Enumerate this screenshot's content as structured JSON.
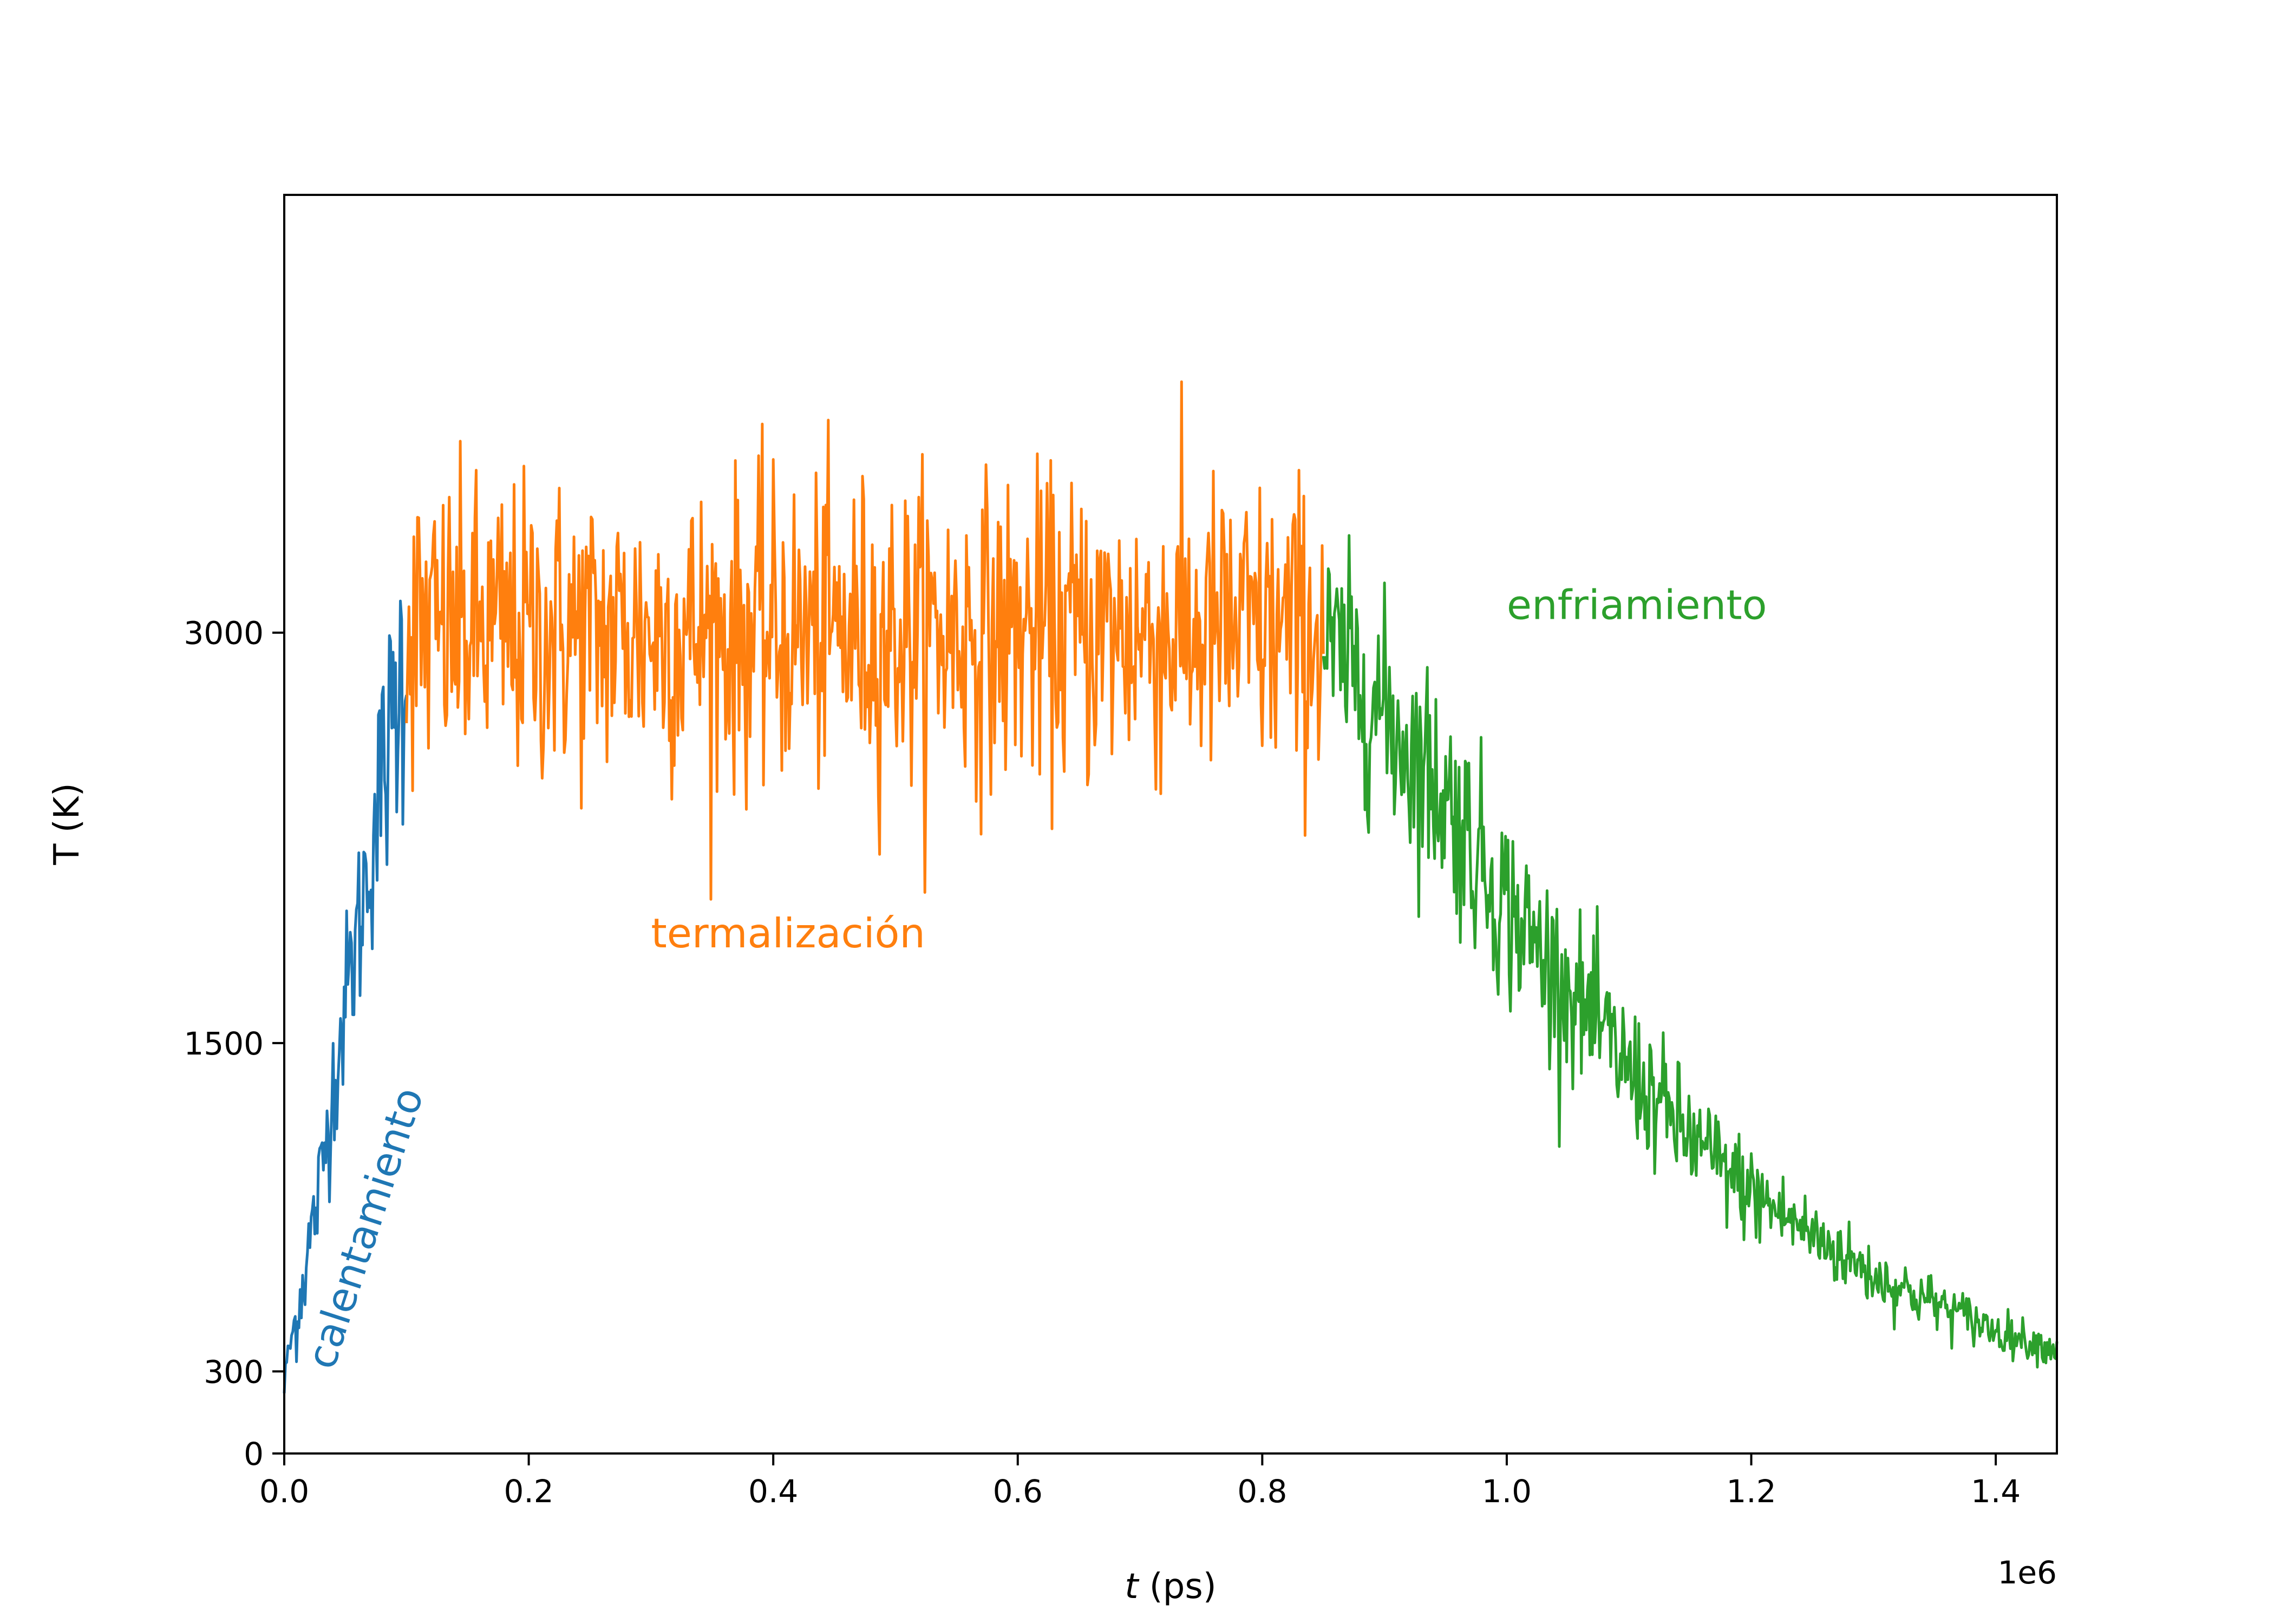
{
  "chart_data": {
    "type": "line",
    "xlabel_var": "t",
    "xlabel_unit": " (ps)",
    "ylabel": "T (K)",
    "x_offset_text": "1e6",
    "xlim": [
      0,
      1450000
    ],
    "ylim": [
      0,
      4600
    ],
    "x_ticks": [
      0,
      200000,
      400000,
      600000,
      800000,
      1000000,
      1200000,
      1400000
    ],
    "x_tick_labels": [
      "0.0",
      "0.2",
      "0.4",
      "0.6",
      "0.8",
      "1.0",
      "1.2",
      "1.4"
    ],
    "y_ticks": [
      0,
      300,
      1500,
      3000
    ],
    "y_tick_labels": [
      "0",
      "300",
      "1500",
      "3000"
    ],
    "grid": false,
    "legend": "none",
    "series": [
      {
        "color": "#1f77b4",
        "x": [
          0,
          10000,
          20000,
          30000,
          40000,
          50000,
          60000,
          70000,
          80000,
          90000,
          100000
        ],
        "y": [
          300,
          500,
          750,
          1000,
          1350,
          1650,
          1900,
          2200,
          2450,
          2700,
          2950
        ],
        "noise": [
          0,
          80,
          100,
          110,
          130,
          150,
          170,
          200,
          220,
          250,
          300
        ],
        "label": "calentamiento"
      },
      {
        "color": "#ff7f0e",
        "x": [
          100000,
          850000
        ],
        "y": [
          3000,
          3000
        ],
        "noise": [
          280,
          280
        ],
        "label": "termalización"
      },
      {
        "color": "#2ca02c",
        "x": [
          850000,
          875000,
          900000,
          950000,
          1000000,
          1050000,
          1100000,
          1150000,
          1200000,
          1250000,
          1300000,
          1350000,
          1400000,
          1450000
        ],
        "y": [
          2950,
          2850,
          2700,
          2400,
          2000,
          1700,
          1400,
          1150,
          950,
          800,
          650,
          550,
          450,
          380
        ],
        "noise": [
          200,
          200,
          200,
          200,
          180,
          150,
          130,
          110,
          90,
          70,
          60,
          50,
          40,
          30
        ],
        "label": "enfriamiento"
      }
    ],
    "annotations": [
      {
        "text": "calentamiento",
        "x": 40000,
        "y": 300,
        "rotation": -72,
        "color": "#1f77b4"
      },
      {
        "text": "termalización",
        "x": 300000,
        "y": 1850,
        "rotation": 0,
        "color": "#ff7f0e"
      },
      {
        "text": "enfriamiento",
        "x": 1000000,
        "y": 3050,
        "rotation": 0,
        "color": "#2ca02c"
      }
    ]
  }
}
